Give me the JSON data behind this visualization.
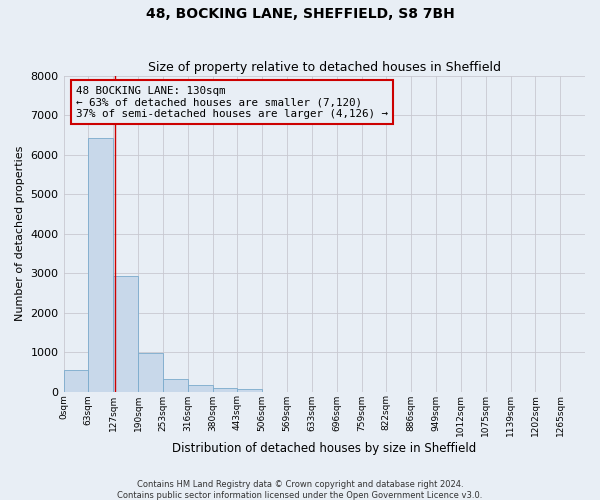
{
  "title": "48, BOCKING LANE, SHEFFIELD, S8 7BH",
  "subtitle": "Size of property relative to detached houses in Sheffield",
  "xlabel": "Distribution of detached houses by size in Sheffield",
  "ylabel": "Number of detached properties",
  "footer_line1": "Contains HM Land Registry data © Crown copyright and database right 2024.",
  "footer_line2": "Contains public sector information licensed under the Open Government Licence v3.0.",
  "bar_labels": [
    "0sqm",
    "63sqm",
    "127sqm",
    "190sqm",
    "253sqm",
    "316sqm",
    "380sqm",
    "443sqm",
    "506sqm",
    "569sqm",
    "633sqm",
    "696sqm",
    "759sqm",
    "822sqm",
    "886sqm",
    "949sqm",
    "1012sqm",
    "1075sqm",
    "1139sqm",
    "1202sqm",
    "1265sqm"
  ],
  "bar_heights": [
    550,
    6430,
    2930,
    975,
    330,
    155,
    100,
    65,
    0,
    0,
    0,
    0,
    0,
    0,
    0,
    0,
    0,
    0,
    0,
    0,
    0
  ],
  "bar_color": "#c8d8ea",
  "bar_edge_color": "#7aaacc",
  "bin_width": 63,
  "property_size": 130,
  "annotation_text_line1": "48 BOCKING LANE: 130sqm",
  "annotation_text_line2": "← 63% of detached houses are smaller (7,120)",
  "annotation_text_line3": "37% of semi-detached houses are larger (4,126) →",
  "annotation_box_color": "#cc0000",
  "vline_color": "#cc0000",
  "ylim": [
    0,
    8000
  ],
  "yticks": [
    0,
    1000,
    2000,
    3000,
    4000,
    5000,
    6000,
    7000,
    8000
  ],
  "grid_color": "#c8c8d0",
  "bg_color": "#e8eef5",
  "title_fontsize": 10,
  "subtitle_fontsize": 9,
  "ylabel_fontsize": 8,
  "xlabel_fontsize": 8.5,
  "ytick_fontsize": 8,
  "xtick_fontsize": 6.5,
  "ann_fontsize": 7.8,
  "footer_fontsize": 6
}
